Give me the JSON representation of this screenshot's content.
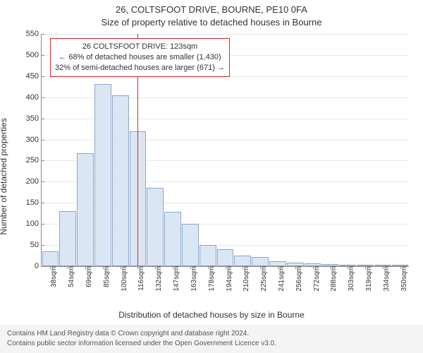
{
  "titles": {
    "main": "26, COLTSFOOT DRIVE, BOURNE, PE10 0FA",
    "sub": "Size of property relative to detached houses in Bourne",
    "ylabel": "Number of detached properties",
    "xlabel": "Distribution of detached houses by size in Bourne"
  },
  "chart": {
    "type": "histogram",
    "ylim": [
      0,
      550
    ],
    "ytick_step": 50,
    "background_color": "#ffffff",
    "grid_color": "#e8e8e8",
    "axis_color": "#888888",
    "bar_fill": "#dbe6f5",
    "bar_border": "#8aa6c9",
    "refline_color": "#d62728",
    "categories": [
      "38sqm",
      "54sqm",
      "69sqm",
      "85sqm",
      "100sqm",
      "116sqm",
      "132sqm",
      "147sqm",
      "163sqm",
      "178sqm",
      "194sqm",
      "210sqm",
      "225sqm",
      "241sqm",
      "256sqm",
      "272sqm",
      "288sqm",
      "303sqm",
      "319sqm",
      "334sqm",
      "350sqm"
    ],
    "values": [
      35,
      130,
      268,
      432,
      405,
      320,
      185,
      128,
      100,
      50,
      40,
      25,
      22,
      12,
      8,
      6,
      5,
      4,
      3,
      2,
      1
    ],
    "reference": {
      "value_sqm": 123,
      "x_index": 5.5
    },
    "annotation": {
      "line1": "26 COLTSFOOT DRIVE: 123sqm",
      "line2": "← 68% of detached houses are smaller (1,430)",
      "line3": "32% of semi-detached houses are larger (671) →"
    }
  },
  "footer": {
    "line1": "Contains HM Land Registry data © Crown copyright and database right 2024.",
    "line2": "Contains public sector information licensed under the Open Government Licence v3.0."
  },
  "fonts": {
    "title_size": 13,
    "label_size": 12,
    "tick_size": 11,
    "anno_size": 11,
    "footer_size": 10
  }
}
